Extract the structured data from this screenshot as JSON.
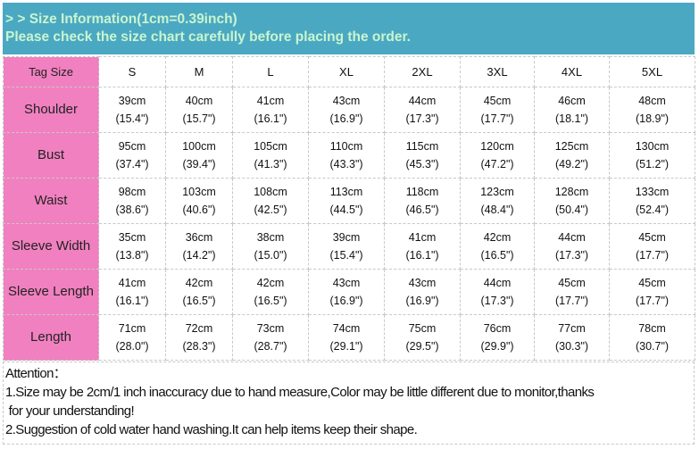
{
  "banner": {
    "line1": "> > Size Information(1cm=0.39inch)",
    "line2": "Please check the size chart carefully  before placing the order."
  },
  "colors": {
    "banner": "#4ba8c2",
    "banner_text": "#c9f5cf",
    "label_cells": "#f180c0"
  },
  "table": {
    "header_label": "Tag Size",
    "sizes": [
      "S",
      "M",
      "L",
      "XL",
      "2XL",
      "3XL",
      "4XL",
      "5XL"
    ],
    "rows": [
      {
        "label": "Shoulder",
        "cm": [
          "39cm",
          "40cm",
          "41cm",
          "43cm",
          "44cm",
          "45cm",
          "46cm",
          "48cm"
        ],
        "inch": [
          "(15.4\")",
          "(15.7\")",
          "(16.1\")",
          "(16.9\")",
          "(17.3\")",
          "(17.7\")",
          "(18.1\")",
          "(18.9\")"
        ]
      },
      {
        "label": "Bust",
        "cm": [
          "95cm",
          "100cm",
          "105cm",
          "110cm",
          "115cm",
          "120cm",
          "125cm",
          "130cm"
        ],
        "inch": [
          "(37.4\")",
          "(39.4\")",
          "(41.3\")",
          "(43.3\")",
          "(45.3\")",
          "(47.2\")",
          "(49.2\")",
          "(51.2\")"
        ]
      },
      {
        "label": "Waist",
        "cm": [
          "98cm",
          "103cm",
          "108cm",
          "113cm",
          "118cm",
          "123cm",
          "128cm",
          "133cm"
        ],
        "inch": [
          "(38.6\")",
          "(40.6\")",
          "(42.5\")",
          "(44.5\")",
          "(46.5\")",
          "(48.4\")",
          "(50.4\")",
          "(52.4\")"
        ]
      },
      {
        "label": "Sleeve Width",
        "cm": [
          "35cm",
          "36cm",
          "38cm",
          "39cm",
          "41cm",
          "42cm",
          "44cm",
          "45cm"
        ],
        "inch": [
          "(13.8\")",
          "(14.2\")",
          "(15.0\")",
          "(15.4\")",
          "(16.1\")",
          "(16.5\")",
          "(17.3\")",
          "(17.7\")"
        ]
      },
      {
        "label": "Sleeve Length",
        "cm": [
          "41cm",
          "42cm",
          "42cm",
          "43cm",
          "43cm",
          "44cm",
          "45cm",
          "45cm"
        ],
        "inch": [
          "(16.1\")",
          "(16.5\")",
          "(16.5\")",
          "(16.9\")",
          "(16.9\")",
          "(17.3\")",
          "(17.7\")",
          "(17.7\")"
        ]
      },
      {
        "label": "Length",
        "cm": [
          "71cm",
          "72cm",
          "73cm",
          "74cm",
          "75cm",
          "76cm",
          "77cm",
          "78cm"
        ],
        "inch": [
          "(28.0\")",
          "(28.3\")",
          "(28.7\")",
          "(29.1\")",
          "(29.5\")",
          "(29.9\")",
          "(30.3\")",
          "(30.7\")"
        ]
      }
    ]
  },
  "attention": {
    "title": "Attention：",
    "line1": "1.Size may be 2cm/1  inch inaccuracy due to hand measure,Color may be little different due to monitor,thanks",
    "line1b": " for your understanding!",
    "line2": "2.Suggestion of cold water hand washing.It can help items keep their shape."
  }
}
